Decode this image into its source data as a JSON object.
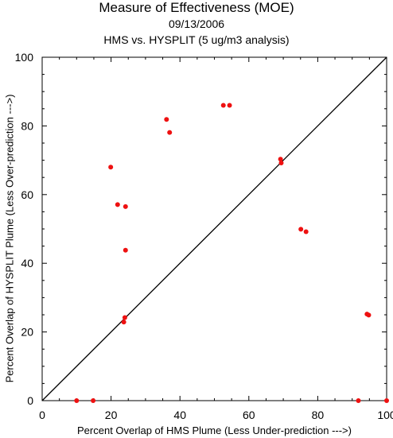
{
  "chart_data": {
    "type": "scatter",
    "title": "Measure of Effectiveness (MOE)",
    "date": "09/13/2006",
    "subtitle": "HMS vs. HYSPLIT  (5 ug/m3 analysis)",
    "xlabel": "Percent Overlap of HMS Plume (Less Under-prediction --->)",
    "ylabel": "Percent Overlap of HYSPLIT Plume (Less Over-prediction --->)",
    "xlim": [
      0,
      100
    ],
    "ylim": [
      0,
      100
    ],
    "xticks": [
      0,
      20,
      40,
      60,
      80,
      100
    ],
    "yticks": [
      0,
      20,
      40,
      60,
      80,
      100
    ],
    "grid": false,
    "diagonal_reference_line": true,
    "point_color": "#ee1111",
    "points": [
      {
        "x": 10.0,
        "y": 0.0
      },
      {
        "x": 14.8,
        "y": 0.0
      },
      {
        "x": 19.9,
        "y": 68.0
      },
      {
        "x": 21.9,
        "y": 57.1
      },
      {
        "x": 23.7,
        "y": 22.9
      },
      {
        "x": 24.0,
        "y": 24.2
      },
      {
        "x": 24.2,
        "y": 56.5
      },
      {
        "x": 24.2,
        "y": 43.8
      },
      {
        "x": 36.1,
        "y": 81.9
      },
      {
        "x": 37.0,
        "y": 78.1
      },
      {
        "x": 52.6,
        "y": 86.0
      },
      {
        "x": 54.4,
        "y": 86.0
      },
      {
        "x": 69.2,
        "y": 70.3
      },
      {
        "x": 69.4,
        "y": 69.2
      },
      {
        "x": 75.1,
        "y": 49.9
      },
      {
        "x": 76.6,
        "y": 49.2
      },
      {
        "x": 91.8,
        "y": 0.0
      },
      {
        "x": 94.3,
        "y": 25.2
      },
      {
        "x": 94.8,
        "y": 24.9
      },
      {
        "x": 100.0,
        "y": 0.0
      }
    ]
  }
}
